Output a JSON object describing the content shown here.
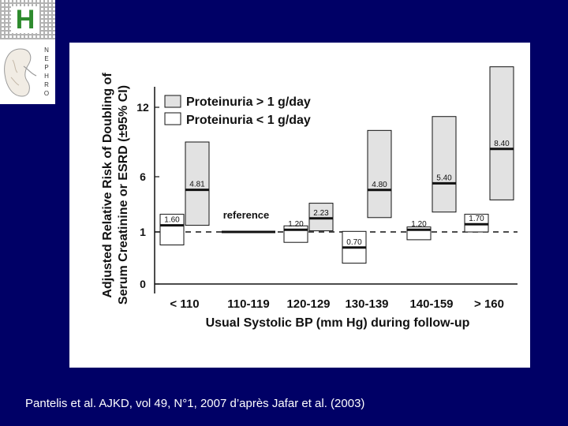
{
  "logo": {
    "letter": "H",
    "letters": [
      "N",
      "E",
      "P",
      "H",
      "R",
      "O"
    ]
  },
  "citation": "Pantelis et al. AJKD, vol 49, N°1, 2007 d’après Jafar et al. (2003)",
  "colors": {
    "background": "#000066",
    "ink": "#111111",
    "shade": "#e2e2e2",
    "logo_green": "#2e8b2e"
  },
  "chart_data": {
    "type": "bar",
    "xlabel": "Usual Systolic BP (mm Hg) during follow-up",
    "ylabel_line1": "Adjusted Relative Risk of Doubling of",
    "ylabel_line2": "Serum Creatinine or ESRD (±95% CI)",
    "y_ticks": [
      "0",
      "1",
      "6",
      "12"
    ],
    "y_scale": "nonlinear (0, 1, 6, 12 equally spaced log-like)",
    "categories": [
      "< 110",
      "110-119",
      "120-129",
      "130-139",
      "140-159",
      "> 160"
    ],
    "series": [
      {
        "name": "Proteinuria > 1 g/day",
        "fill": "shaded",
        "values": [
          4.81,
          null,
          2.23,
          4.8,
          5.4,
          8.4
        ],
        "labels": [
          "4.81",
          "",
          "2.23",
          "4.80",
          "5.40",
          "8.40"
        ],
        "ci": [
          [
            1.6,
            9.0
          ],
          null,
          [
            1.1,
            3.6
          ],
          [
            2.3,
            10.0
          ],
          [
            2.8,
            11.2
          ],
          [
            3.9,
            15.5
          ]
        ]
      },
      {
        "name": "Proteinuria < 1 g/day",
        "fill": "white",
        "values": [
          1.6,
          null,
          1.2,
          0.7,
          1.2,
          1.7
        ],
        "labels": [
          "1.60",
          "",
          "1.20",
          "0.70",
          "1.20",
          "1.70"
        ],
        "ci": [
          [
            0.75,
            2.6
          ],
          null,
          [
            0.8,
            1.55
          ],
          [
            0.4,
            1.05
          ],
          [
            0.85,
            1.45
          ],
          [
            1.0,
            2.6
          ]
        ]
      }
    ],
    "reference": {
      "label": "reference",
      "category": "110-119",
      "value": 1
    },
    "legend": [
      "Proteinuria > 1 g/day",
      "Proteinuria < 1 g/day"
    ],
    "legend_position": "top-left",
    "reference_line": {
      "value": 1,
      "style": "dashed"
    }
  }
}
